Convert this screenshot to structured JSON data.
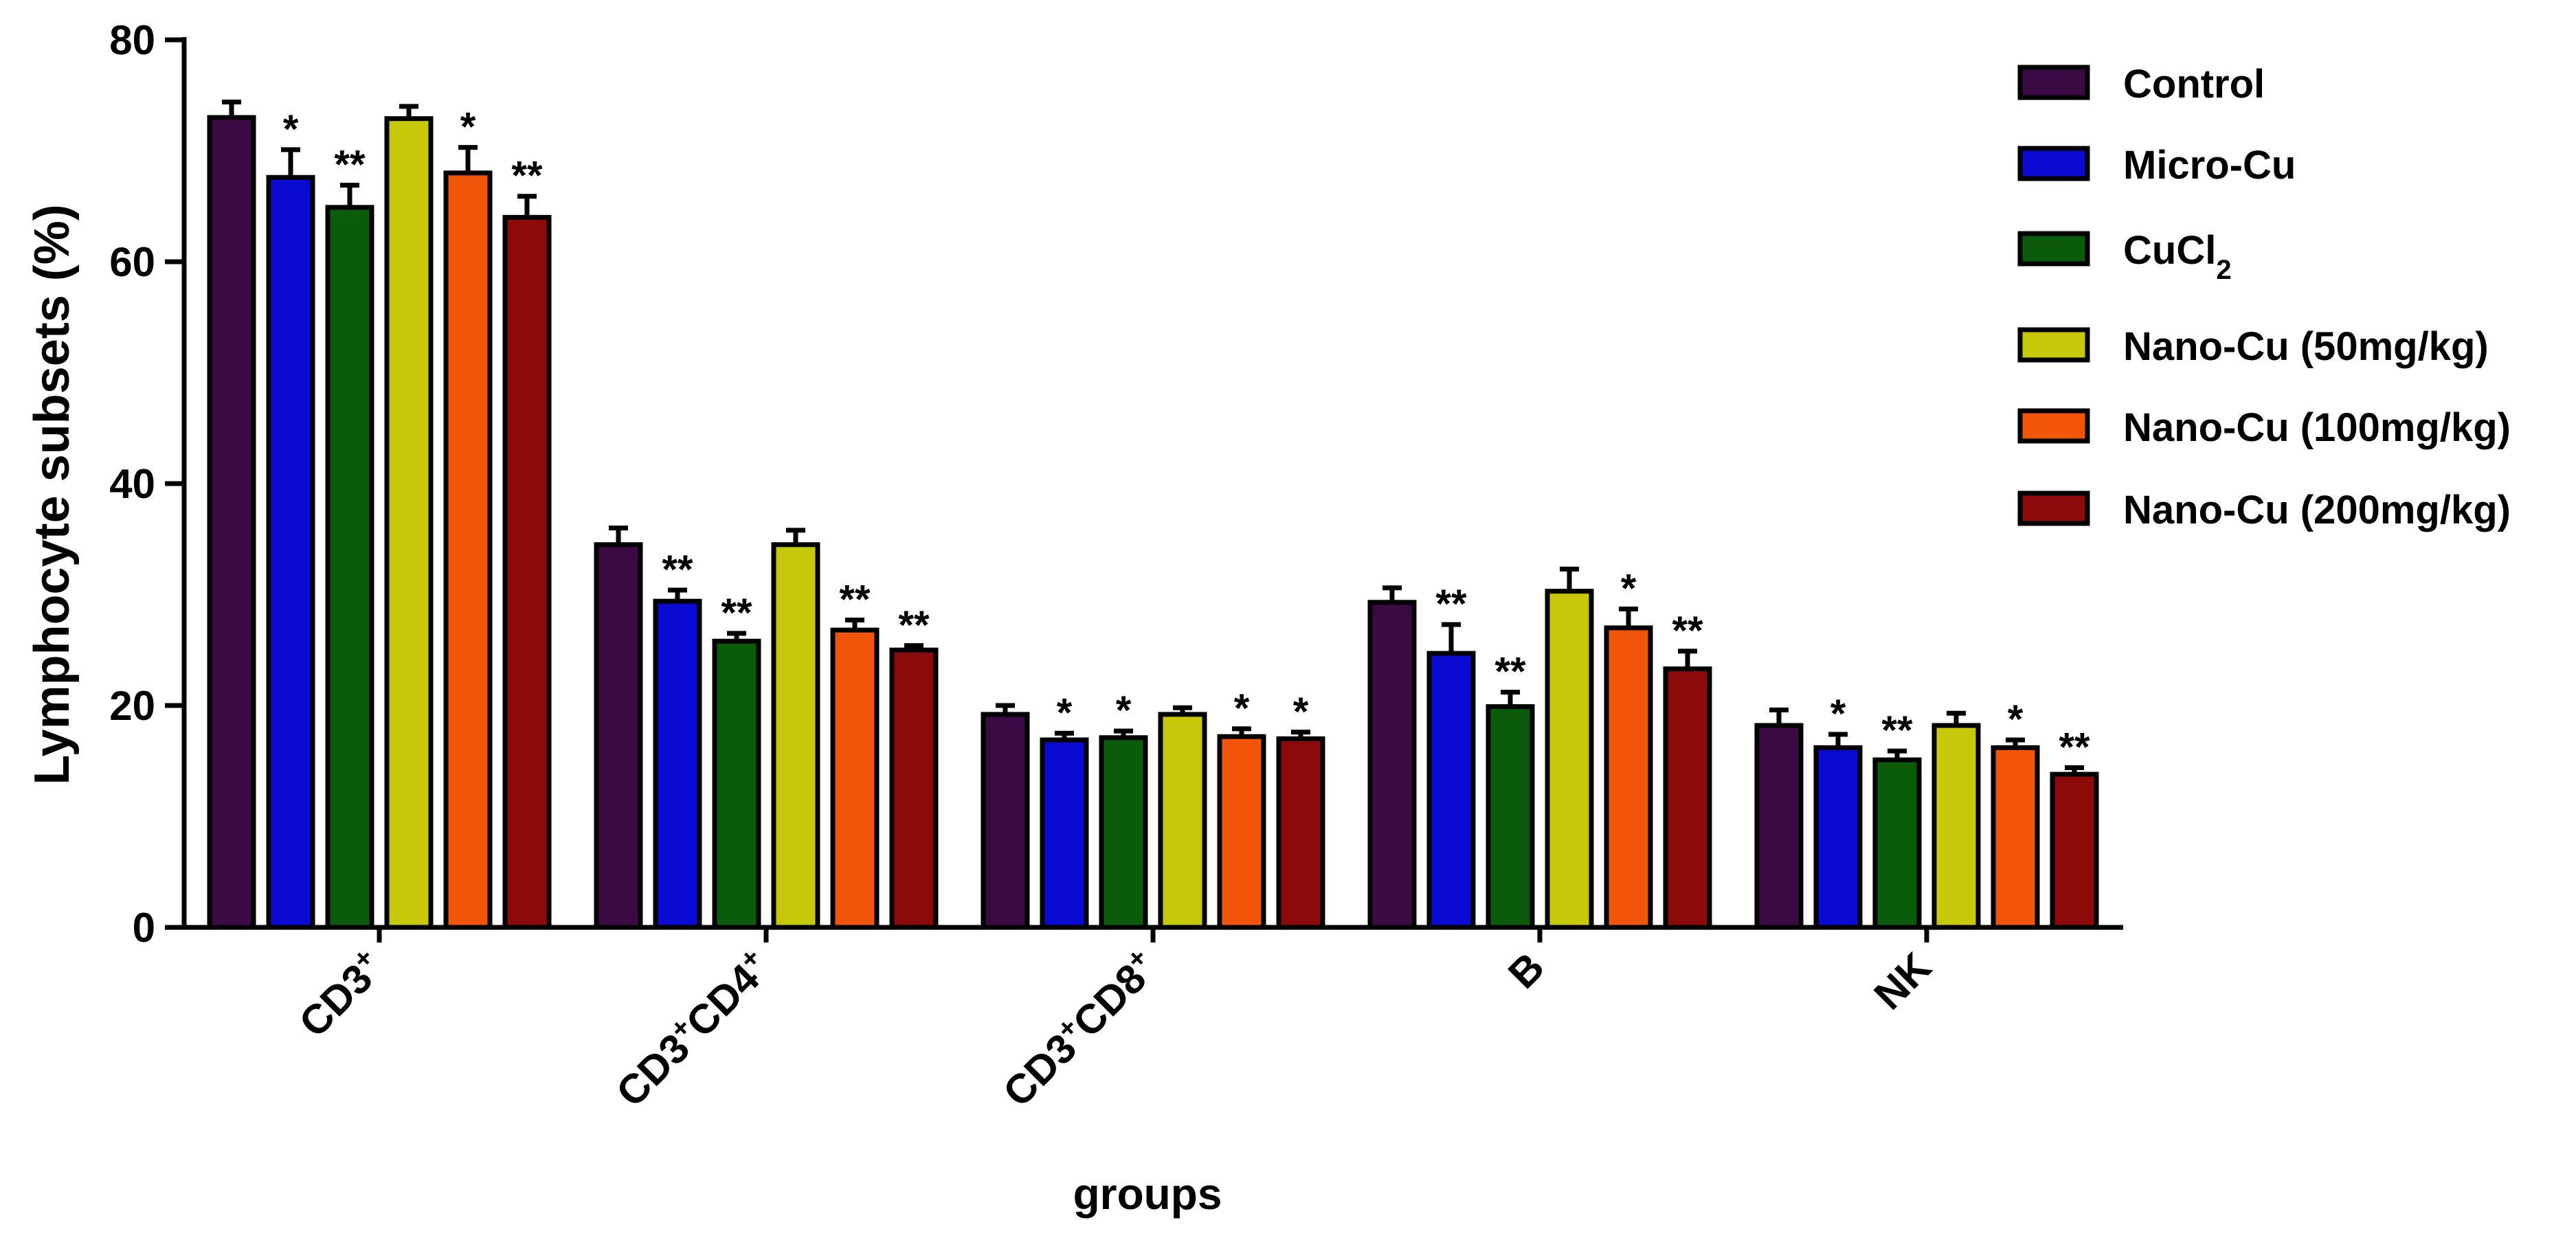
{
  "chart_data": {
    "type": "bar",
    "title": "",
    "xlabel": "groups",
    "ylabel": "Lymphocyte subsets (%)",
    "ylim": [
      0,
      80
    ],
    "yticks": [
      "0",
      "20",
      "40",
      "60",
      "80"
    ],
    "categories": [
      {
        "base": "CD3",
        "sup": "+",
        "base2": "",
        "sup2": ""
      },
      {
        "base": "CD3",
        "sup": "+",
        "base2": "CD4",
        "sup2": "+"
      },
      {
        "base": "CD3",
        "sup": "+",
        "base2": "CD8",
        "sup2": "+"
      },
      {
        "base": "B",
        "sup": "",
        "base2": "",
        "sup2": ""
      },
      {
        "base": "NK",
        "sup": "",
        "base2": "",
        "sup2": ""
      }
    ],
    "series": [
      {
        "name": "Control",
        "name_sub": "",
        "color": "#3b0a45",
        "values": [
          73,
          34.5,
          19.2,
          29.3,
          18.2
        ],
        "errors": [
          1.4,
          1.5,
          0.8,
          1.3,
          1.4
        ],
        "sig": [
          "",
          "",
          "",
          "",
          ""
        ]
      },
      {
        "name": "Micro-Cu",
        "name_sub": "",
        "color": "#0a0ad2",
        "values": [
          67.6,
          29.4,
          16.9,
          24.7,
          16.2
        ],
        "errors": [
          2.5,
          1.0,
          0.6,
          2.6,
          1.2
        ],
        "sig": [
          "*",
          "**",
          "*",
          "**",
          "*"
        ]
      },
      {
        "name": "CuCl",
        "name_sub": "2",
        "color": "#0a5c0a",
        "values": [
          64.9,
          25.8,
          17.1,
          19.9,
          15.1
        ],
        "errors": [
          2.0,
          0.7,
          0.6,
          1.3,
          0.8
        ],
        "sig": [
          "**",
          "**",
          "*",
          "**",
          "**"
        ]
      },
      {
        "name": "Nano-Cu (50mg/kg)",
        "name_sub": "",
        "color": "#c8c80a",
        "values": [
          72.9,
          34.5,
          19.2,
          30.3,
          18.2
        ],
        "errors": [
          1.1,
          1.3,
          0.6,
          2.0,
          1.1
        ],
        "sig": [
          "",
          "",
          "",
          "",
          ""
        ]
      },
      {
        "name": "Nano-Cu (100mg/kg)",
        "name_sub": "",
        "color": "#f0550a",
        "values": [
          68.0,
          26.8,
          17.2,
          27.0,
          16.2
        ],
        "errors": [
          2.3,
          0.9,
          0.7,
          1.7,
          0.7
        ],
        "sig": [
          "*",
          "**",
          "*",
          "*",
          "*"
        ]
      },
      {
        "name": "Nano-Cu (200mg/kg)",
        "name_sub": "",
        "color": "#8c0a0a",
        "values": [
          64.0,
          25.0,
          17.0,
          23.3,
          13.8
        ],
        "errors": [
          1.9,
          0.4,
          0.6,
          1.6,
          0.6
        ],
        "sig": [
          "**",
          "**",
          "*",
          "**",
          "**"
        ]
      }
    ]
  }
}
